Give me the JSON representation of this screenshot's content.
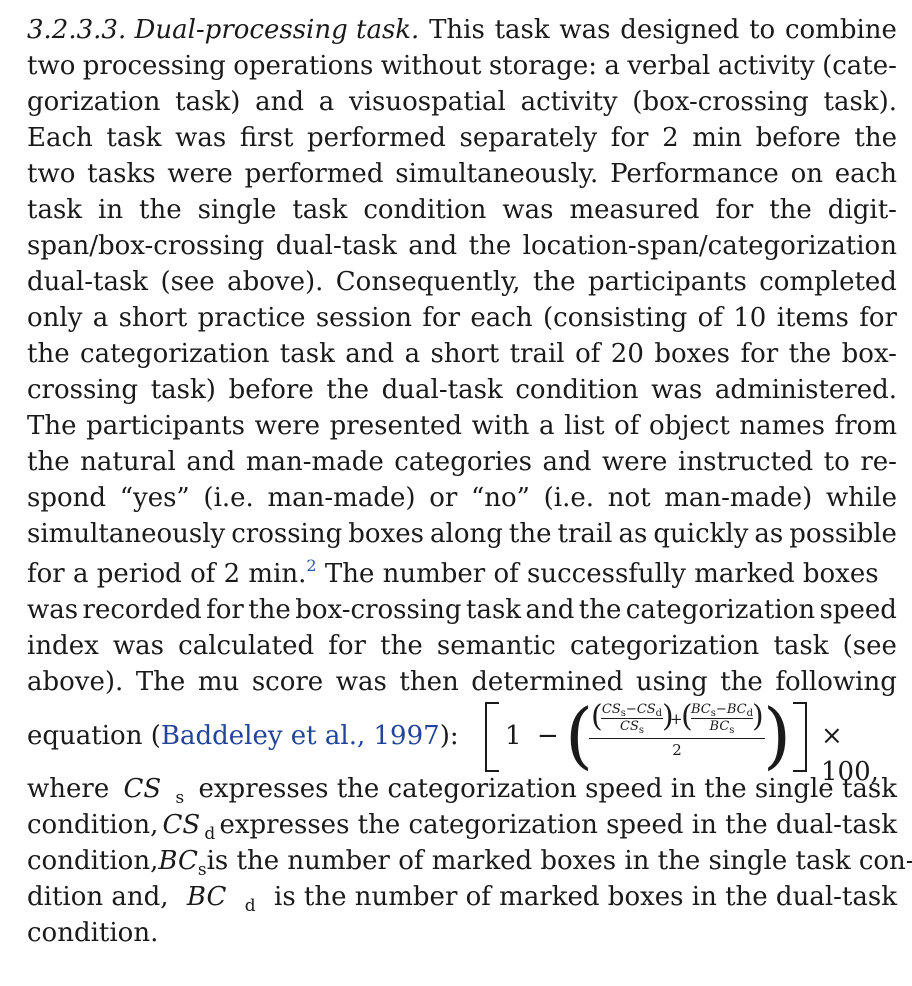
{
  "paragraph": {
    "heading": "3.2.3.3. Dual-processing task.",
    "lines": [
      " This task was designed to combine",
      "two processing operations without storage: a verbal activity (cate-",
      "gorization task) and a visuospatial activity (box-crossing task).",
      "Each task was first performed separately for 2 min before the",
      "two tasks were performed simultaneously. Performance on each",
      "task in the single task condition was measured for the digit-",
      "span/box-crossing dual-task and the location-span/categorization",
      "dual-task (see above). Consequently, the participants completed",
      "only a short practice session for each (consisting of 10 items for",
      "the categorization task and a short trail of 20 boxes for the box-",
      "crossing task) before the dual-task condition was administered.",
      "The participants were presented with a list of object names from",
      "the natural and man-made categories and were instructed to re-",
      "spond “yes” (i.e. man-made) or “no” (i.e. not man-made) while",
      "simultaneously crossing boxes along the trail as quickly as possible"
    ],
    "line16_pre": "for a period of 2 min.",
    "footnote_mark": "2",
    "line16_post": " The number of successfully marked boxes",
    "lines_b": [
      "was recorded for the box-crossing task and the categorization speed",
      "index was calculated for the semantic categorization task (see",
      "above). The mu score was then determined using the following"
    ],
    "eq_pre": "equation (",
    "citation": "Baddeley et al., 1997",
    "eq_post": "):",
    "formula": {
      "one": "1",
      "minus": "−",
      "cs": "CS",
      "bc": "BC",
      "sub_s": "s",
      "sub_d": "d",
      "minus_small": "−",
      "plus": "+",
      "two": "2",
      "times": "× 100,"
    },
    "def1_pre": "where ",
    "def1_var": "CS",
    "def1_sub": "s",
    "def1_post": " expresses the categorization speed in the single task",
    "def2_pre": "condition, ",
    "def2_var": "CS",
    "def2_sub": "d",
    "def2_post": " expresses the categorization speed in the dual-task",
    "def3_pre": "condition, ",
    "def3_var": "BC",
    "def3_sub": "s",
    "def3_post": " is the number of marked boxes in the single task con-",
    "def4_pre": "dition and, ",
    "def4_var": "BC",
    "def4_sub": "d",
    "def4_post": " is the number of marked boxes in the dual-task",
    "final": "condition."
  }
}
